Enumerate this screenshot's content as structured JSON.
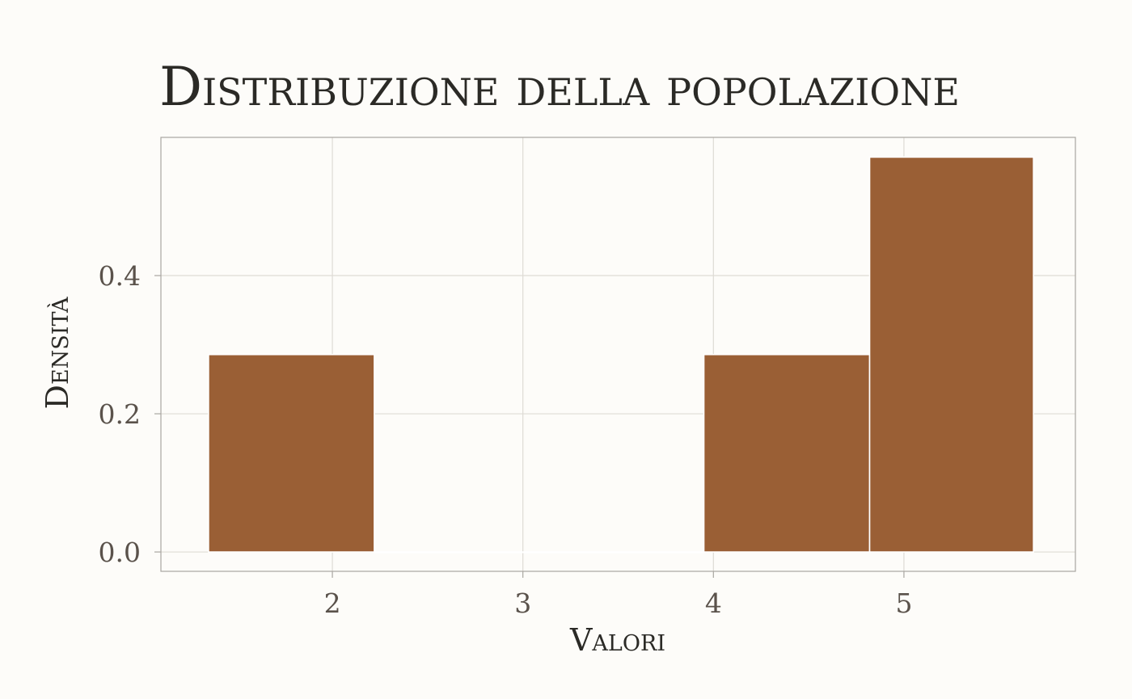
{
  "chart_data": {
    "type": "bar",
    "title": "Distribuzione della popolazione",
    "xlabel": "Valori",
    "ylabel": "Densità",
    "x_ticks": [
      2,
      3,
      4,
      5
    ],
    "y_ticks": [
      0.0,
      0.2,
      0.4
    ],
    "y_tick_labels": [
      "0.0",
      "0.2",
      "0.4"
    ],
    "xlim": [
      1.1,
      5.9
    ],
    "ylim": [
      -0.028,
      0.6
    ],
    "bins": [
      {
        "x0": 1.35,
        "x1": 2.22,
        "value": 0.2857
      },
      {
        "x0": 2.22,
        "x1": 3.08,
        "value": 0.0
      },
      {
        "x0": 3.08,
        "x1": 3.95,
        "value": 0.0
      },
      {
        "x0": 3.95,
        "x1": 4.82,
        "value": 0.2857
      },
      {
        "x0": 4.82,
        "x1": 5.68,
        "value": 0.5714
      }
    ],
    "grid": true,
    "colors": {
      "bar": "#9a5f35",
      "bar_edge": "#ffffff",
      "grid": "#dedbd5",
      "axis": "#a9a6a1",
      "background": "#fdfcf9"
    }
  }
}
